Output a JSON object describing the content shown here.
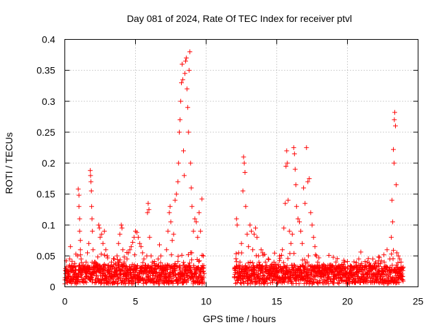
{
  "chart_data": {
    "type": "scatter",
    "title": "Day 081 of 2024, Rate Of TEC Index for receiver ptvl",
    "xlabel": "GPS time / hours",
    "ylabel": "ROTI / TECUs",
    "xlim": [
      0,
      25
    ],
    "ylim": [
      0,
      0.4
    ],
    "x_ticks": [
      0,
      5,
      10,
      15,
      20,
      25
    ],
    "x_tick_labels": [
      "0",
      "5",
      "10",
      "15",
      "20",
      "25"
    ],
    "y_ticks": [
      0,
      0.05,
      0.1,
      0.15,
      0.2,
      0.25,
      0.3,
      0.35,
      0.4
    ],
    "y_tick_labels": [
      "0",
      "0.05",
      "0.1",
      "0.15",
      "0.2",
      "0.25",
      "0.3",
      "0.35",
      "0.4"
    ],
    "grid": true,
    "marker": "+",
    "series": [
      {
        "name": "ROTI",
        "color": "#ff0000",
        "points": [
          [
            0.1,
            0.012
          ],
          [
            0.2,
            0.025
          ],
          [
            0.3,
            0.018
          ],
          [
            0.35,
            0.045
          ],
          [
            0.4,
            0.065
          ],
          [
            0.5,
            0.03
          ],
          [
            0.6,
            0.015
          ],
          [
            0.7,
            0.038
          ],
          [
            0.8,
            0.022
          ],
          [
            0.9,
            0.05
          ],
          [
            0.95,
            0.158
          ],
          [
            1.0,
            0.148
          ],
          [
            1.0,
            0.13
          ],
          [
            1.05,
            0.11
          ],
          [
            1.05,
            0.09
          ],
          [
            1.1,
            0.075
          ],
          [
            1.1,
            0.06
          ],
          [
            1.15,
            0.045
          ],
          [
            1.2,
            0.02
          ],
          [
            1.3,
            0.035
          ],
          [
            1.4,
            0.028
          ],
          [
            1.5,
            0.04
          ],
          [
            1.6,
            0.055
          ],
          [
            1.7,
            0.07
          ],
          [
            1.8,
            0.188
          ],
          [
            1.82,
            0.18
          ],
          [
            1.85,
            0.17
          ],
          [
            1.88,
            0.155
          ],
          [
            1.9,
            0.13
          ],
          [
            1.92,
            0.11
          ],
          [
            1.95,
            0.09
          ],
          [
            2.0,
            0.06
          ],
          [
            2.1,
            0.04
          ],
          [
            2.2,
            0.025
          ],
          [
            2.3,
            0.03
          ],
          [
            2.4,
            0.1
          ],
          [
            2.45,
            0.095
          ],
          [
            2.5,
            0.08
          ],
          [
            2.6,
            0.085
          ],
          [
            2.7,
            0.07
          ],
          [
            2.8,
            0.09
          ],
          [
            2.9,
            0.06
          ],
          [
            3.0,
            0.05
          ],
          [
            3.1,
            0.035
          ],
          [
            3.2,
            0.028
          ],
          [
            3.3,
            0.04
          ],
          [
            3.4,
            0.032
          ],
          [
            3.5,
            0.045
          ],
          [
            3.6,
            0.038
          ],
          [
            3.7,
            0.05
          ],
          [
            3.8,
            0.07
          ],
          [
            3.9,
            0.085
          ],
          [
            4.0,
            0.1
          ],
          [
            4.05,
            0.095
          ],
          [
            4.1,
            0.06
          ],
          [
            4.2,
            0.04
          ],
          [
            4.3,
            0.03
          ],
          [
            4.4,
            0.045
          ],
          [
            4.5,
            0.055
          ],
          [
            4.6,
            0.06
          ],
          [
            4.7,
            0.065
          ],
          [
            4.8,
            0.072
          ],
          [
            4.9,
            0.08
          ],
          [
            5.0,
            0.09
          ],
          [
            5.1,
            0.088
          ],
          [
            5.2,
            0.08
          ],
          [
            5.3,
            0.07
          ],
          [
            5.4,
            0.065
          ],
          [
            5.5,
            0.055
          ],
          [
            5.6,
            0.045
          ],
          [
            5.7,
            0.035
          ],
          [
            5.8,
            0.05
          ],
          [
            5.85,
            0.12
          ],
          [
            5.9,
            0.135
          ],
          [
            5.95,
            0.125
          ],
          [
            6.0,
            0.08
          ],
          [
            6.1,
            0.05
          ],
          [
            6.2,
            0.04
          ],
          [
            6.3,
            0.038
          ],
          [
            6.4,
            0.03
          ],
          [
            6.5,
            0.035
          ],
          [
            6.6,
            0.045
          ],
          [
            6.7,
            0.068
          ],
          [
            6.8,
            0.05
          ],
          [
            6.9,
            0.03
          ],
          [
            7.0,
            0.025
          ],
          [
            7.1,
            0.035
          ],
          [
            7.2,
            0.06
          ],
          [
            7.3,
            0.09
          ],
          [
            7.4,
            0.12
          ],
          [
            7.45,
            0.13
          ],
          [
            7.5,
            0.105
          ],
          [
            7.6,
            0.075
          ],
          [
            7.7,
            0.085
          ],
          [
            7.8,
            0.14
          ],
          [
            7.9,
            0.15
          ],
          [
            8.0,
            0.17
          ],
          [
            8.05,
            0.2
          ],
          [
            8.1,
            0.25
          ],
          [
            8.15,
            0.27
          ],
          [
            8.2,
            0.3
          ],
          [
            8.25,
            0.33
          ],
          [
            8.3,
            0.36
          ],
          [
            8.35,
            0.335
          ],
          [
            8.4,
            0.22
          ],
          [
            8.45,
            0.18
          ],
          [
            8.5,
            0.345
          ],
          [
            8.55,
            0.365
          ],
          [
            8.6,
            0.37
          ],
          [
            8.65,
            0.32
          ],
          [
            8.7,
            0.29
          ],
          [
            8.75,
            0.25
          ],
          [
            8.8,
            0.35
          ],
          [
            8.85,
            0.38
          ],
          [
            8.9,
            0.2
          ],
          [
            8.95,
            0.16
          ],
          [
            9.0,
            0.13
          ],
          [
            9.1,
            0.09
          ],
          [
            9.2,
            0.11
          ],
          [
            9.3,
            0.105
          ],
          [
            9.4,
            0.08
          ],
          [
            9.5,
            0.12
          ],
          [
            9.6,
            0.09
          ],
          [
            9.7,
            0.142
          ],
          [
            9.8,
            0.05
          ],
          [
            12.0,
            0.015
          ],
          [
            12.1,
            0.03
          ],
          [
            12.15,
            0.11
          ],
          [
            12.2,
            0.1
          ],
          [
            12.3,
            0.055
          ],
          [
            12.4,
            0.04
          ],
          [
            12.5,
            0.07
          ],
          [
            12.6,
            0.155
          ],
          [
            12.65,
            0.21
          ],
          [
            12.7,
            0.2
          ],
          [
            12.75,
            0.185
          ],
          [
            12.8,
            0.13
          ],
          [
            12.9,
            0.085
          ],
          [
            13.0,
            0.065
          ],
          [
            13.1,
            0.1
          ],
          [
            13.2,
            0.09
          ],
          [
            13.3,
            0.06
          ],
          [
            13.4,
            0.085
          ],
          [
            13.5,
            0.095
          ],
          [
            13.6,
            0.08
          ],
          [
            13.7,
            0.05
          ],
          [
            13.8,
            0.035
          ],
          [
            13.9,
            0.06
          ],
          [
            14.0,
            0.055
          ],
          [
            14.2,
            0.04
          ],
          [
            14.4,
            0.045
          ],
          [
            14.6,
            0.035
          ],
          [
            14.8,
            0.04
          ],
          [
            15.0,
            0.03
          ],
          [
            15.2,
            0.05
          ],
          [
            15.4,
            0.06
          ],
          [
            15.5,
            0.095
          ],
          [
            15.6,
            0.135
          ],
          [
            15.65,
            0.195
          ],
          [
            15.7,
            0.22
          ],
          [
            15.75,
            0.2
          ],
          [
            15.8,
            0.14
          ],
          [
            15.9,
            0.09
          ],
          [
            16.0,
            0.07
          ],
          [
            16.1,
            0.085
          ],
          [
            16.2,
            0.225
          ],
          [
            16.25,
            0.215
          ],
          [
            16.3,
            0.19
          ],
          [
            16.35,
            0.165
          ],
          [
            16.4,
            0.13
          ],
          [
            16.5,
            0.11
          ],
          [
            16.6,
            0.105
          ],
          [
            16.7,
            0.09
          ],
          [
            16.8,
            0.07
          ],
          [
            16.9,
            0.16
          ],
          [
            17.0,
            0.135
          ],
          [
            17.1,
            0.225
          ],
          [
            17.2,
            0.17
          ],
          [
            17.3,
            0.175
          ],
          [
            17.4,
            0.12
          ],
          [
            17.5,
            0.1
          ],
          [
            17.6,
            0.08
          ],
          [
            17.7,
            0.065
          ],
          [
            17.8,
            0.05
          ],
          [
            17.9,
            0.04
          ],
          [
            18.0,
            0.035
          ],
          [
            18.2,
            0.03
          ],
          [
            18.4,
            0.028
          ],
          [
            18.6,
            0.032
          ],
          [
            18.8,
            0.035
          ],
          [
            19.0,
            0.048
          ],
          [
            19.2,
            0.03
          ],
          [
            19.4,
            0.025
          ],
          [
            19.6,
            0.035
          ],
          [
            19.8,
            0.04
          ],
          [
            20.0,
            0.03
          ],
          [
            20.2,
            0.028
          ],
          [
            20.4,
            0.03
          ],
          [
            20.6,
            0.035
          ],
          [
            20.8,
            0.045
          ],
          [
            21.0,
            0.038
          ],
          [
            21.2,
            0.032
          ],
          [
            21.4,
            0.04
          ],
          [
            21.6,
            0.035
          ],
          [
            21.8,
            0.045
          ],
          [
            22.0,
            0.04
          ],
          [
            22.2,
            0.038
          ],
          [
            22.4,
            0.042
          ],
          [
            22.6,
            0.04
          ],
          [
            22.8,
            0.06
          ],
          [
            23.0,
            0.045
          ],
          [
            23.1,
            0.08
          ],
          [
            23.15,
            0.14
          ],
          [
            23.2,
            0.105
          ],
          [
            23.25,
            0.222
          ],
          [
            23.3,
            0.2
          ],
          [
            23.32,
            0.27
          ],
          [
            23.35,
            0.282
          ],
          [
            23.4,
            0.26
          ],
          [
            23.45,
            0.165
          ],
          [
            23.5,
            0.055
          ],
          [
            23.6,
            0.05
          ],
          [
            23.7,
            0.045
          ],
          [
            23.8,
            0.04
          ],
          [
            23.9,
            0.03
          ]
        ]
      }
    ]
  }
}
